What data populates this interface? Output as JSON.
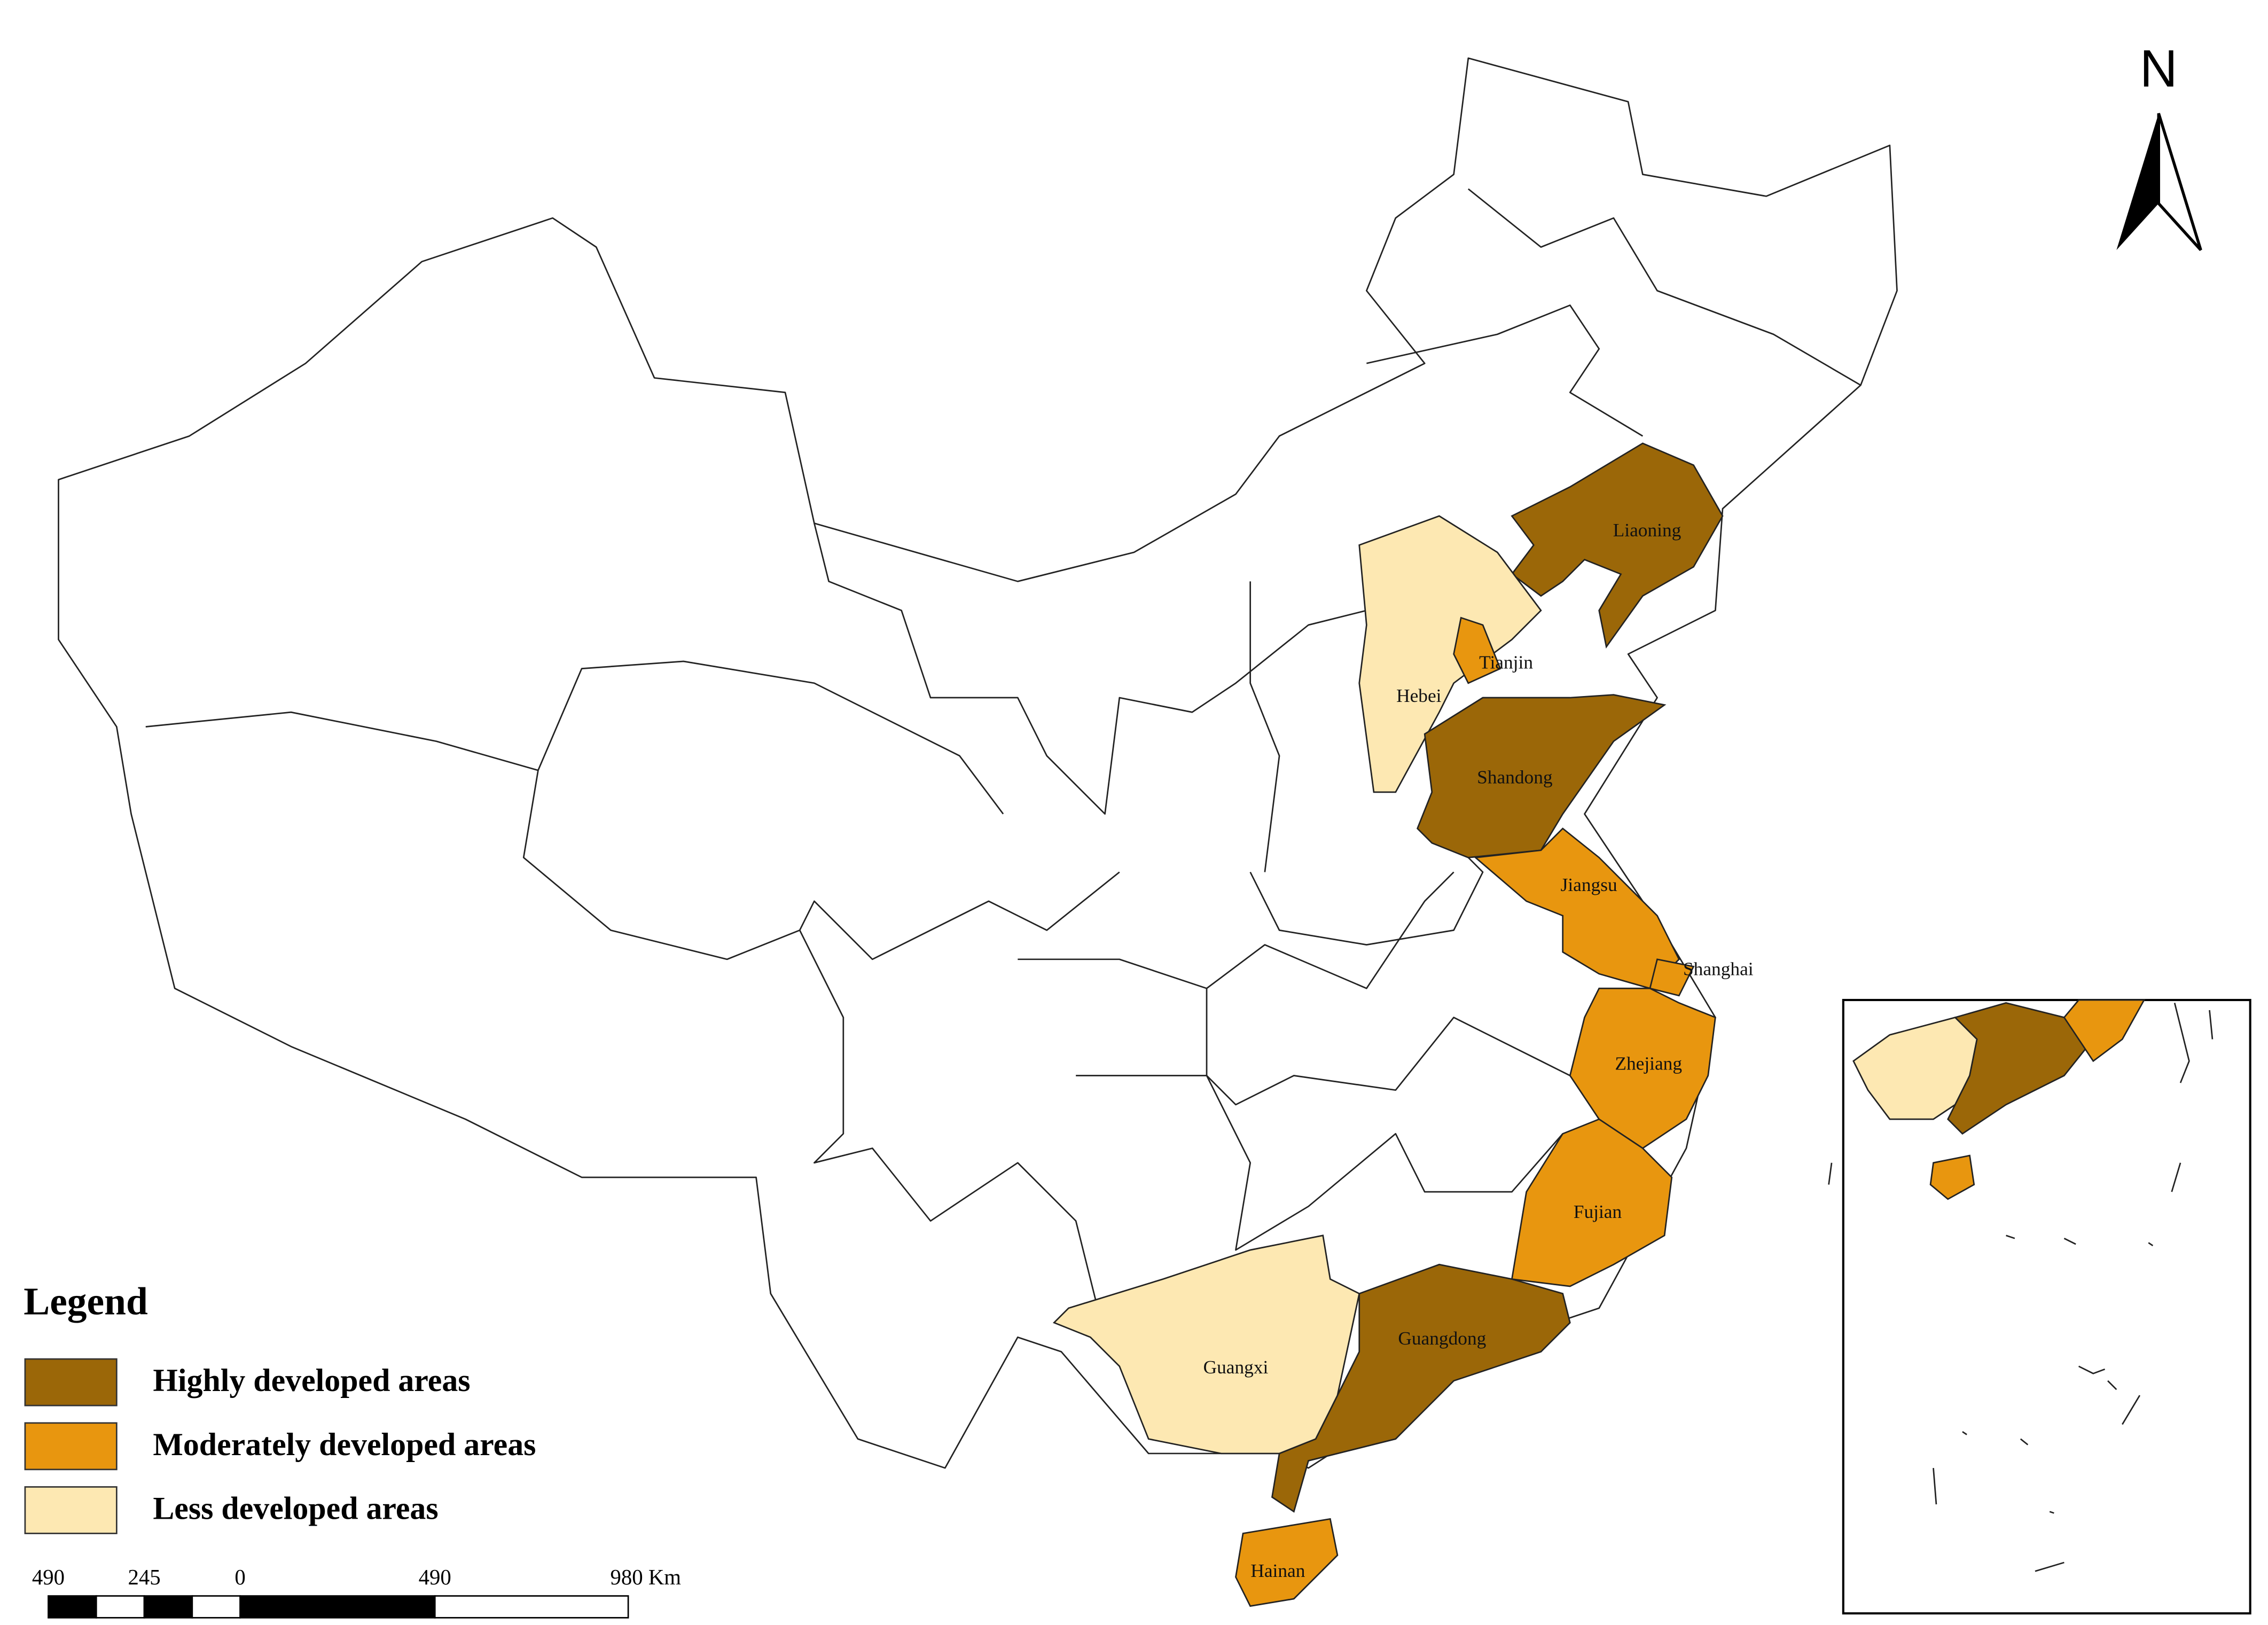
{
  "north": "N",
  "legend": {
    "title": "Legend",
    "items": [
      {
        "label": "Highly developed areas",
        "color": "#9b6708"
      },
      {
        "label": "Moderately developed areas",
        "color": "#e8960f"
      },
      {
        "label": "Less developed areas",
        "color": "#fde8b2"
      }
    ]
  },
  "regions": [
    {
      "name": "Liaoning",
      "level": 0
    },
    {
      "name": "Hebei",
      "level": 2
    },
    {
      "name": "Tianjin",
      "level": 1
    },
    {
      "name": "Shandong",
      "level": 0
    },
    {
      "name": "Jiangsu",
      "level": 1
    },
    {
      "name": "Shanghai",
      "level": 1
    },
    {
      "name": "Zhejiang",
      "level": 1
    },
    {
      "name": "Fujian",
      "level": 1
    },
    {
      "name": "Guangdong",
      "level": 0
    },
    {
      "name": "Guangxi",
      "level": 2
    },
    {
      "name": "Hainan",
      "level": 1
    }
  ],
  "scale_bar": {
    "labels": [
      "490",
      "245",
      "0",
      "490",
      "980 Km"
    ]
  }
}
